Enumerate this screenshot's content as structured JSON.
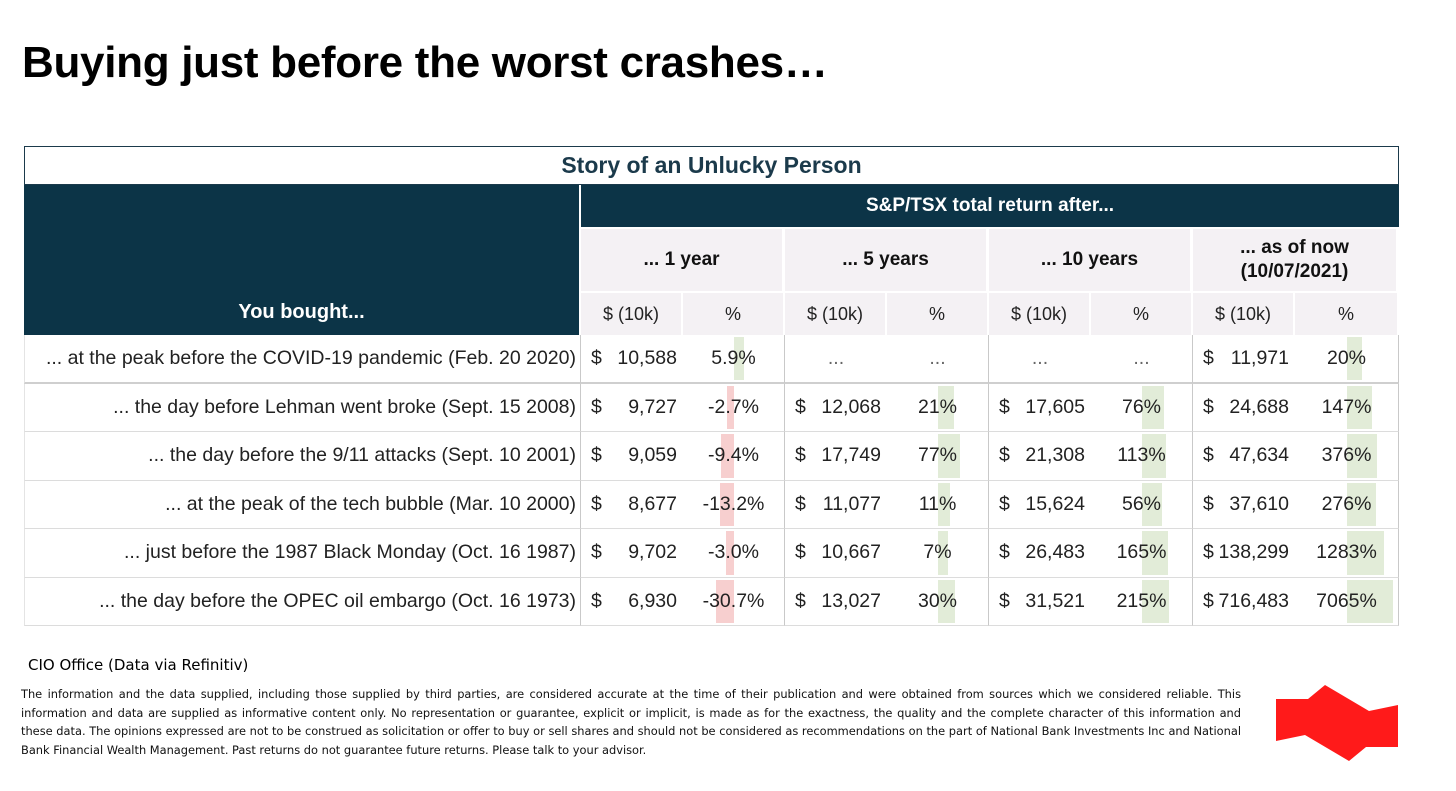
{
  "title": "Buying just before the worst crashes…",
  "table": {
    "caption": "Story of an Unlucky Person",
    "row_header": "You bought...",
    "group_header": "S&P/TSX total return after...",
    "periods": [
      "... 1 year",
      "... 5 years",
      "... 10 years",
      "... as of now (10/07/2021)"
    ],
    "money_col": "$ (10k)",
    "pct_col": "%",
    "currency": "$",
    "rows": [
      {
        "label": "... at the peak before the COVID-19 pandemic (Feb. 20 2020)",
        "values": [
          {
            "money": "10,588",
            "pct": "5.9%",
            "pct_value": 5.9
          },
          {
            "money": "...",
            "pct": "...",
            "pct_value": null
          },
          {
            "money": "...",
            "pct": "...",
            "pct_value": null
          },
          {
            "money": "11,971",
            "pct": "20%",
            "pct_value": 20
          }
        ]
      },
      {
        "label": "... the day before Lehman went broke (Sept. 15 2008)",
        "values": [
          {
            "money": "9,727",
            "pct": "-2.7%",
            "pct_value": -2.7
          },
          {
            "money": "12,068",
            "pct": "21%",
            "pct_value": 21
          },
          {
            "money": "17,605",
            "pct": "76%",
            "pct_value": 76
          },
          {
            "money": "24,688",
            "pct": "147%",
            "pct_value": 147
          }
        ]
      },
      {
        "label": "... the day before the 9/11 attacks (Sept. 10 2001)",
        "values": [
          {
            "money": "9,059",
            "pct": "-9.4%",
            "pct_value": -9.4
          },
          {
            "money": "17,749",
            "pct": "77%",
            "pct_value": 77
          },
          {
            "money": "21,308",
            "pct": "113%",
            "pct_value": 113
          },
          {
            "money": "47,634",
            "pct": "376%",
            "pct_value": 376
          }
        ]
      },
      {
        "label": "... at the peak of the tech bubble (Mar. 10 2000)",
        "values": [
          {
            "money": "8,677",
            "pct": "-13.2%",
            "pct_value": -13.2
          },
          {
            "money": "11,077",
            "pct": "11%",
            "pct_value": 11
          },
          {
            "money": "15,624",
            "pct": "56%",
            "pct_value": 56
          },
          {
            "money": "37,610",
            "pct": "276%",
            "pct_value": 276
          }
        ]
      },
      {
        "label": "... just before the 1987 Black Monday (Oct. 16 1987)",
        "values": [
          {
            "money": "9,702",
            "pct": "-3.0%",
            "pct_value": -3.0
          },
          {
            "money": "10,667",
            "pct": "7%",
            "pct_value": 7
          },
          {
            "money": "26,483",
            "pct": "165%",
            "pct_value": 165
          },
          {
            "money": "138,299",
            "pct": "1283%",
            "pct_value": 1283
          }
        ]
      },
      {
        "label": "... the day before the OPEC oil embargo (Oct. 16 1973)",
        "values": [
          {
            "money": "6,930",
            "pct": "-30.7%",
            "pct_value": -30.7
          },
          {
            "money": "13,027",
            "pct": "30%",
            "pct_value": 30
          },
          {
            "money": "31,521",
            "pct": "215%",
            "pct_value": 215
          },
          {
            "money": "716,483",
            "pct": "7065%",
            "pct_value": 7065
          }
        ]
      }
    ]
  },
  "source": "CIO Office (Data via Refinitiv)",
  "disclaimer": "The information and the data supplied, including those supplied by third parties, are considered accurate at the time of their publication and were obtained from sources which we considered reliable. This information and data are supplied as informative content only. No representation or guarantee, explicit or implicit, is made as for the exactness, the quality and the complete character of this information and these data. The opinions expressed are not to be construed as solicitation or offer to buy or sell shares and should not be considered as recommendations on the part of National Bank Investments Inc and National Bank Financial Wealth Management. Past returns do not guarantee future returns. Please talk to your advisor.",
  "colors": {
    "header_dark": "#0c3447",
    "header_light": "#f4f1f4",
    "positive_bar": "#e2ecd8",
    "negative_bar": "#f7cfcf",
    "logo_red": "#ff1a1a"
  },
  "logo_icon": "national-bank-logo-icon"
}
